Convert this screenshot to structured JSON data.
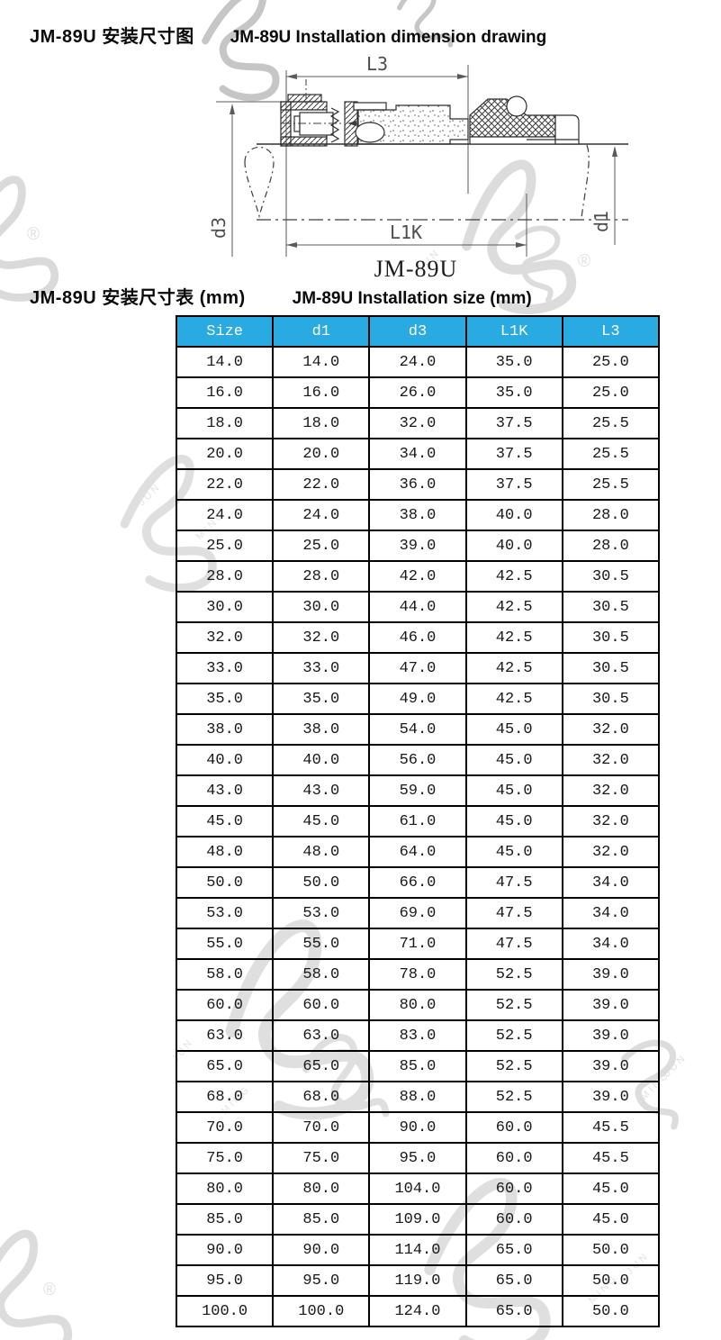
{
  "titles": {
    "main_zh": "JM-89U 安装尺寸图",
    "main_en": "JM-89U Installation dimension drawing",
    "table_zh": "JM-89U 安装尺寸表 (mm)",
    "table_en": "JM-89U Installation size (mm)"
  },
  "drawing": {
    "labels": {
      "l3": "L3",
      "l1k": "L1K",
      "d3": "d3",
      "d1": "d1",
      "model": "JM-89U"
    }
  },
  "watermark": {
    "jun": "JUN",
    "ming": "MING",
    "reg": "®"
  },
  "table": {
    "header_bg": "#29ABE2",
    "columns": [
      "Size",
      "d1",
      "d3",
      "L1K",
      "L3"
    ],
    "rows": [
      [
        "14.0",
        "14.0",
        "24.0",
        "35.0",
        "25.0"
      ],
      [
        "16.0",
        "16.0",
        "26.0",
        "35.0",
        "25.0"
      ],
      [
        "18.0",
        "18.0",
        "32.0",
        "37.5",
        "25.5"
      ],
      [
        "20.0",
        "20.0",
        "34.0",
        "37.5",
        "25.5"
      ],
      [
        "22.0",
        "22.0",
        "36.0",
        "37.5",
        "25.5"
      ],
      [
        "24.0",
        "24.0",
        "38.0",
        "40.0",
        "28.0"
      ],
      [
        "25.0",
        "25.0",
        "39.0",
        "40.0",
        "28.0"
      ],
      [
        "28.0",
        "28.0",
        "42.0",
        "42.5",
        "30.5"
      ],
      [
        "30.0",
        "30.0",
        "44.0",
        "42.5",
        "30.5"
      ],
      [
        "32.0",
        "32.0",
        "46.0",
        "42.5",
        "30.5"
      ],
      [
        "33.0",
        "33.0",
        "47.0",
        "42.5",
        "30.5"
      ],
      [
        "35.0",
        "35.0",
        "49.0",
        "42.5",
        "30.5"
      ],
      [
        "38.0",
        "38.0",
        "54.0",
        "45.0",
        "32.0"
      ],
      [
        "40.0",
        "40.0",
        "56.0",
        "45.0",
        "32.0"
      ],
      [
        "43.0",
        "43.0",
        "59.0",
        "45.0",
        "32.0"
      ],
      [
        "45.0",
        "45.0",
        "61.0",
        "45.0",
        "32.0"
      ],
      [
        "48.0",
        "48.0",
        "64.0",
        "45.0",
        "32.0"
      ],
      [
        "50.0",
        "50.0",
        "66.0",
        "47.5",
        "34.0"
      ],
      [
        "53.0",
        "53.0",
        "69.0",
        "47.5",
        "34.0"
      ],
      [
        "55.0",
        "55.0",
        "71.0",
        "47.5",
        "34.0"
      ],
      [
        "58.0",
        "58.0",
        "78.0",
        "52.5",
        "39.0"
      ],
      [
        "60.0",
        "60.0",
        "80.0",
        "52.5",
        "39.0"
      ],
      [
        "63.0",
        "63.0",
        "83.0",
        "52.5",
        "39.0"
      ],
      [
        "65.0",
        "65.0",
        "85.0",
        "52.5",
        "39.0"
      ],
      [
        "68.0",
        "68.0",
        "88.0",
        "52.5",
        "39.0"
      ],
      [
        "70.0",
        "70.0",
        "90.0",
        "60.0",
        "45.5"
      ],
      [
        "75.0",
        "75.0",
        "95.0",
        "60.0",
        "45.5"
      ],
      [
        "80.0",
        "80.0",
        "104.0",
        "60.0",
        "45.0"
      ],
      [
        "85.0",
        "85.0",
        "109.0",
        "60.0",
        "45.0"
      ],
      [
        "90.0",
        "90.0",
        "114.0",
        "65.0",
        "50.0"
      ],
      [
        "95.0",
        "95.0",
        "119.0",
        "65.0",
        "50.0"
      ],
      [
        "100.0",
        "100.0",
        "124.0",
        "65.0",
        "50.0"
      ]
    ]
  }
}
